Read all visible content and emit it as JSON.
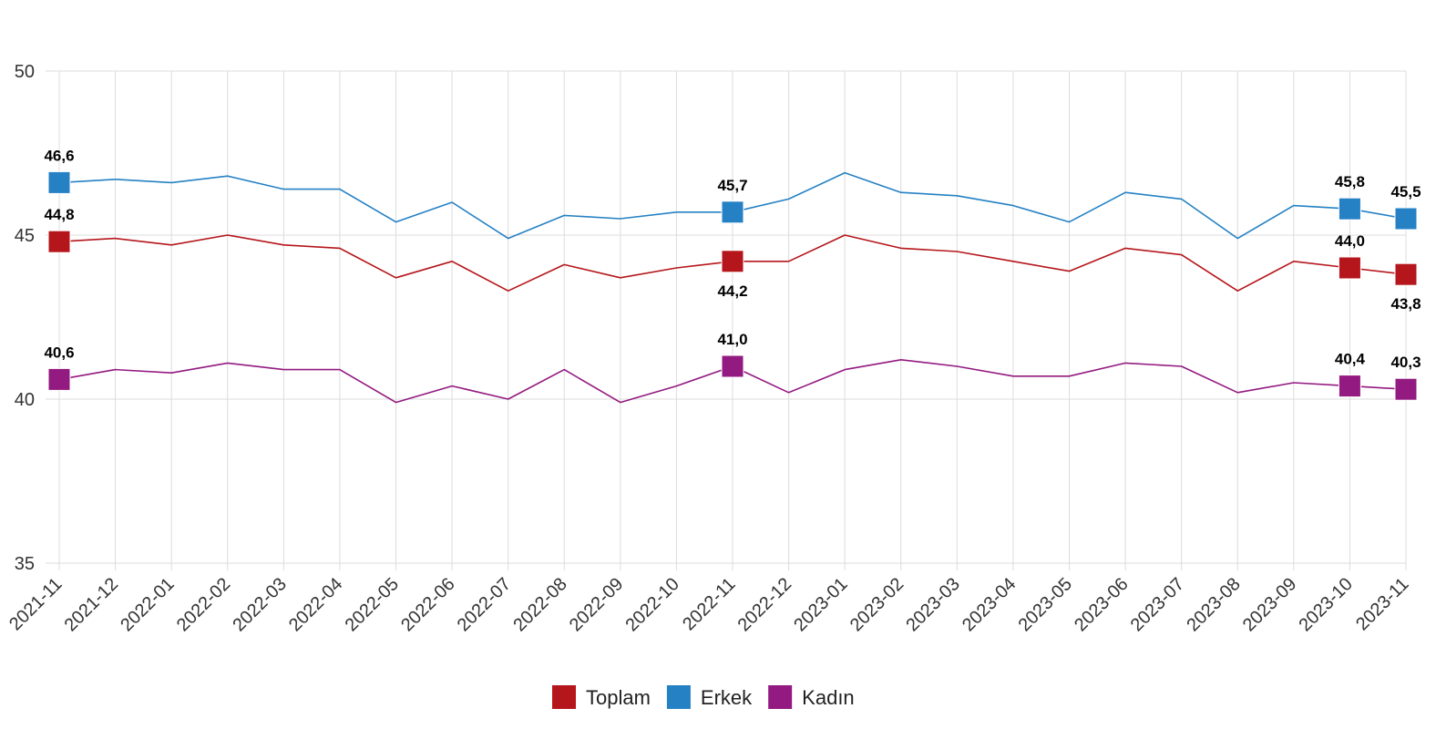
{
  "chart_data": {
    "type": "line",
    "title": "",
    "xlabel": "",
    "ylabel": "",
    "ylim": [
      35,
      50
    ],
    "yticks": [
      35,
      40,
      45,
      50
    ],
    "grid": true,
    "legend_position": "bottom-center",
    "categories": [
      "2021-11",
      "2021-12",
      "2022-01",
      "2022-02",
      "2022-03",
      "2022-04",
      "2022-05",
      "2022-06",
      "2022-07",
      "2022-08",
      "2022-09",
      "2022-10",
      "2022-11",
      "2022-12",
      "2023-01",
      "2023-02",
      "2023-03",
      "2023-04",
      "2023-05",
      "2023-06",
      "2023-07",
      "2023-08",
      "2023-09",
      "2023-10",
      "2023-11"
    ],
    "series": [
      {
        "name": "Toplam",
        "color": "#b5161b",
        "values": [
          44.8,
          44.9,
          44.7,
          45.0,
          44.7,
          44.6,
          43.7,
          44.2,
          43.3,
          44.1,
          43.7,
          44.0,
          44.2,
          44.2,
          45.0,
          44.6,
          44.5,
          44.2,
          43.9,
          44.6,
          44.4,
          43.3,
          44.2,
          44.0,
          43.8
        ],
        "labels": [
          {
            "index": 0,
            "text": "44,8",
            "pos": "above"
          },
          {
            "index": 12,
            "text": "44,2",
            "pos": "below"
          },
          {
            "index": 23,
            "text": "44,0",
            "pos": "above"
          },
          {
            "index": 24,
            "text": "43,8",
            "pos": "below"
          }
        ]
      },
      {
        "name": "Erkek",
        "color": "#2581c4",
        "values": [
          46.6,
          46.7,
          46.6,
          46.8,
          46.4,
          46.4,
          45.4,
          46.0,
          44.9,
          45.6,
          45.5,
          45.7,
          45.7,
          46.1,
          46.9,
          46.3,
          46.2,
          45.9,
          45.4,
          46.3,
          46.1,
          44.9,
          45.9,
          45.8,
          45.5
        ],
        "labels": [
          {
            "index": 0,
            "text": "46,6",
            "pos": "above"
          },
          {
            "index": 12,
            "text": "45,7",
            "pos": "above"
          },
          {
            "index": 23,
            "text": "45,8",
            "pos": "above"
          },
          {
            "index": 24,
            "text": "45,5",
            "pos": "above"
          }
        ]
      },
      {
        "name": "Kadın",
        "color": "#931a80",
        "values": [
          40.6,
          40.9,
          40.8,
          41.1,
          40.9,
          40.9,
          39.9,
          40.4,
          40.0,
          40.9,
          39.9,
          40.4,
          41.0,
          40.2,
          40.9,
          41.2,
          41.0,
          40.7,
          40.7,
          41.1,
          41.0,
          40.2,
          40.5,
          40.4,
          40.3
        ],
        "labels": [
          {
            "index": 0,
            "text": "40,6",
            "pos": "above"
          },
          {
            "index": 12,
            "text": "41,0",
            "pos": "above"
          },
          {
            "index": 23,
            "text": "40,4",
            "pos": "above"
          },
          {
            "index": 24,
            "text": "40,3",
            "pos": "above"
          }
        ]
      }
    ]
  }
}
